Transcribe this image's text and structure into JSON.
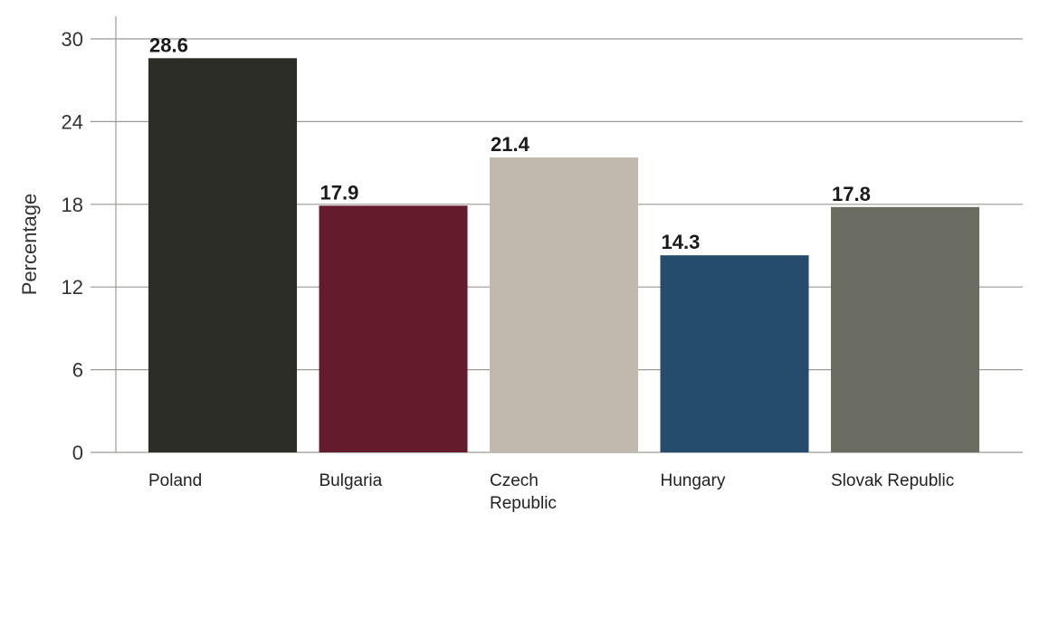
{
  "chart_data": {
    "type": "bar",
    "categories": [
      "Poland",
      "Bulgaria",
      "Czech Republic",
      "Hungary",
      "Slovak Republic"
    ],
    "category_lines": [
      [
        "Poland"
      ],
      [
        "Bulgaria"
      ],
      [
        "Czech",
        "Republic"
      ],
      [
        "Hungary"
      ],
      [
        "Slovak Republic"
      ]
    ],
    "values": [
      28.6,
      17.9,
      21.4,
      14.3,
      17.8
    ],
    "data_labels": [
      "28.6",
      "17.9",
      "21.4",
      "14.3",
      "17.8"
    ],
    "colors": [
      "#2c2d27",
      "#641b2c",
      "#c1b9ad",
      "#254b6d",
      "#6b6d63"
    ],
    "ylabel": "Percentage",
    "xlabel": "",
    "ylim": [
      0,
      30
    ],
    "yticks": [
      0,
      6,
      12,
      18,
      24,
      30
    ],
    "ytick_labels": [
      "0",
      "6",
      "12",
      "18",
      "24",
      "30"
    ],
    "grid": true,
    "legend": "none"
  },
  "colors": {
    "grid": "#9a9a94",
    "axis": "#9a9a94"
  }
}
